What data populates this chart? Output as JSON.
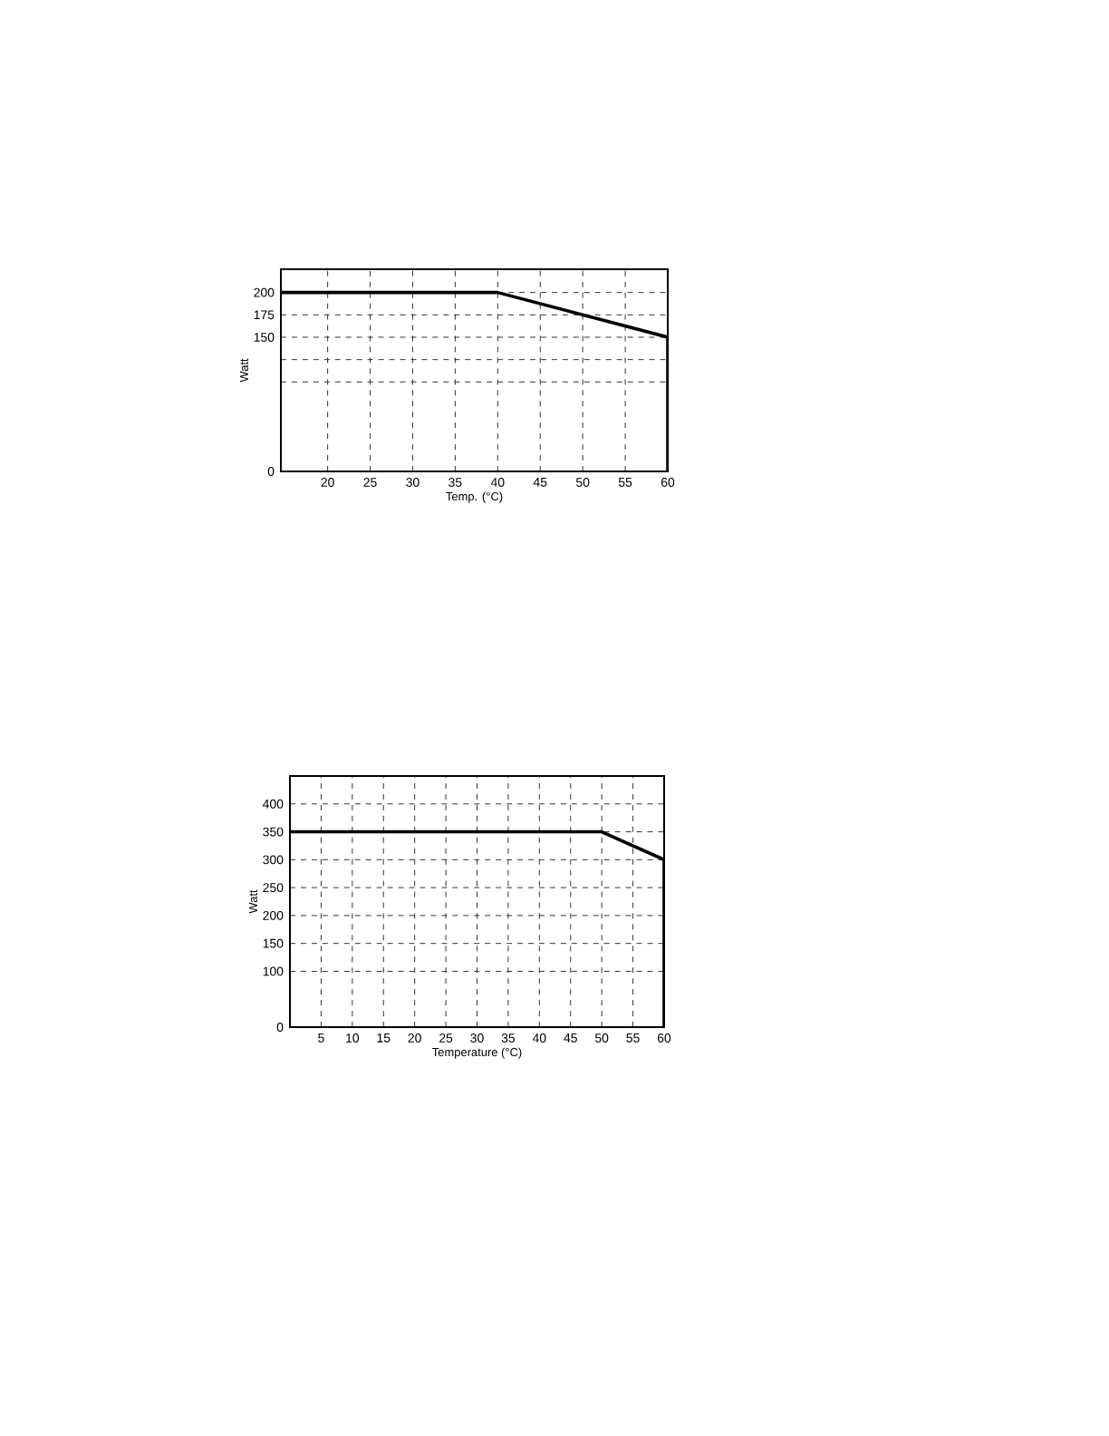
{
  "chart_data": [
    {
      "type": "line",
      "xlabel": "Temp. (°C)",
      "ylabel": "Watt",
      "xlim": [
        14.5,
        60
      ],
      "ylim": [
        0,
        226
      ],
      "xticks": [
        20,
        25,
        30,
        35,
        40,
        45,
        50,
        55,
        60
      ],
      "yticks": [
        0,
        {
          "value": 100,
          "label": null
        },
        {
          "value": 125,
          "label": null
        },
        150,
        175,
        200
      ],
      "grid": true,
      "series": [
        {
          "color": "#000000",
          "x": [
            14.5,
            40,
            60,
            60
          ],
          "values": [
            200,
            200,
            150,
            0
          ]
        }
      ]
    },
    {
      "type": "line",
      "xlabel": "Temperature (°C)",
      "ylabel": "Watt",
      "xlim": [
        0,
        60
      ],
      "ylim": [
        0,
        450
      ],
      "xticks": [
        5,
        10,
        15,
        20,
        25,
        30,
        35,
        40,
        45,
        50,
        55,
        60
      ],
      "yticks": [
        0,
        100,
        150,
        200,
        250,
        300,
        350,
        400
      ],
      "grid": true,
      "series": [
        {
          "color": "#000000",
          "x": [
            0,
            50,
            60,
            60
          ],
          "values": [
            350,
            350,
            300,
            0
          ]
        }
      ]
    }
  ]
}
